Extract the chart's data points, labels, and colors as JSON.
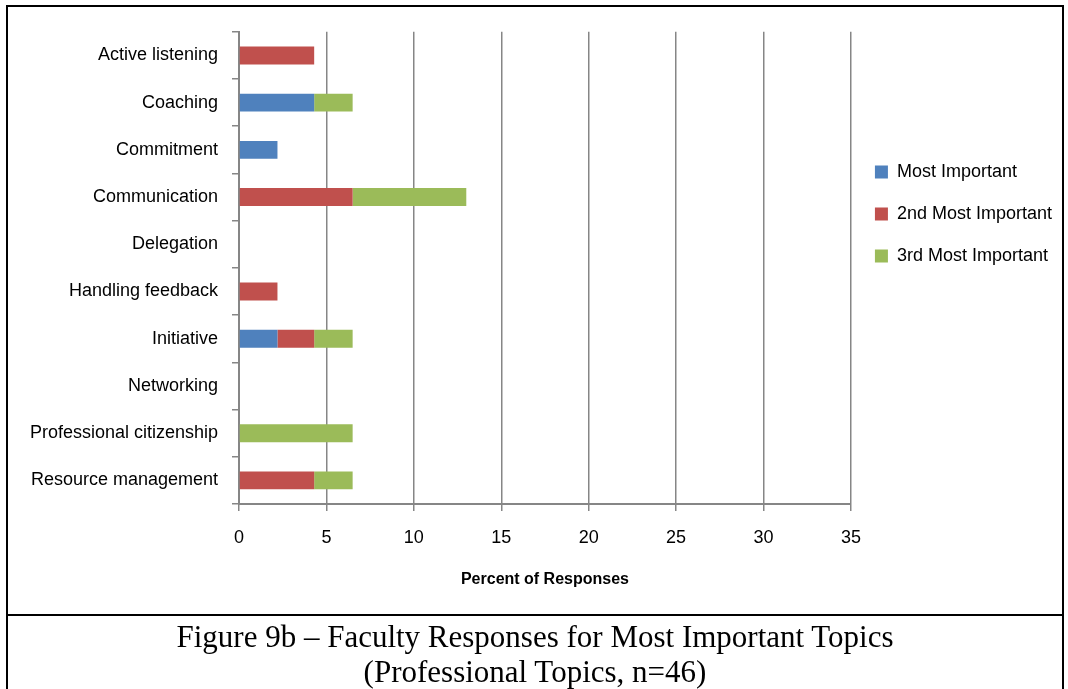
{
  "chart_data": {
    "type": "bar",
    "orientation": "horizontal",
    "stacked": true,
    "title": "Figure 9b – Faculty Responses for Most Important Topics",
    "subtitle": "(Professional Topics, n=46)",
    "xlabel": "Percent of Responses",
    "categories": [
      "Active listening",
      "Coaching",
      "Commitment",
      "Communication",
      "Delegation",
      "Handling feedback",
      "Initiative",
      "Networking",
      "Professional citizenship",
      "Resource management"
    ],
    "series": [
      {
        "name": "Most Important",
        "color": "#4f81bd",
        "values": [
          0,
          4.3,
          2.2,
          0,
          0,
          0,
          2.2,
          0,
          0,
          0
        ]
      },
      {
        "name": "2nd Most Important",
        "color": "#c0504d",
        "values": [
          4.3,
          0,
          0,
          6.5,
          0,
          2.2,
          2.1,
          0,
          0,
          4.3
        ]
      },
      {
        "name": "3rd Most Important",
        "color": "#9bbb59",
        "values": [
          0,
          2.2,
          0,
          6.5,
          0,
          0,
          2.2,
          0,
          6.5,
          2.2
        ]
      }
    ],
    "xlim": [
      0,
      35
    ],
    "xticks": [
      0,
      5,
      10,
      15,
      20,
      25,
      30,
      35
    ],
    "grid": "x",
    "legend": "right"
  }
}
